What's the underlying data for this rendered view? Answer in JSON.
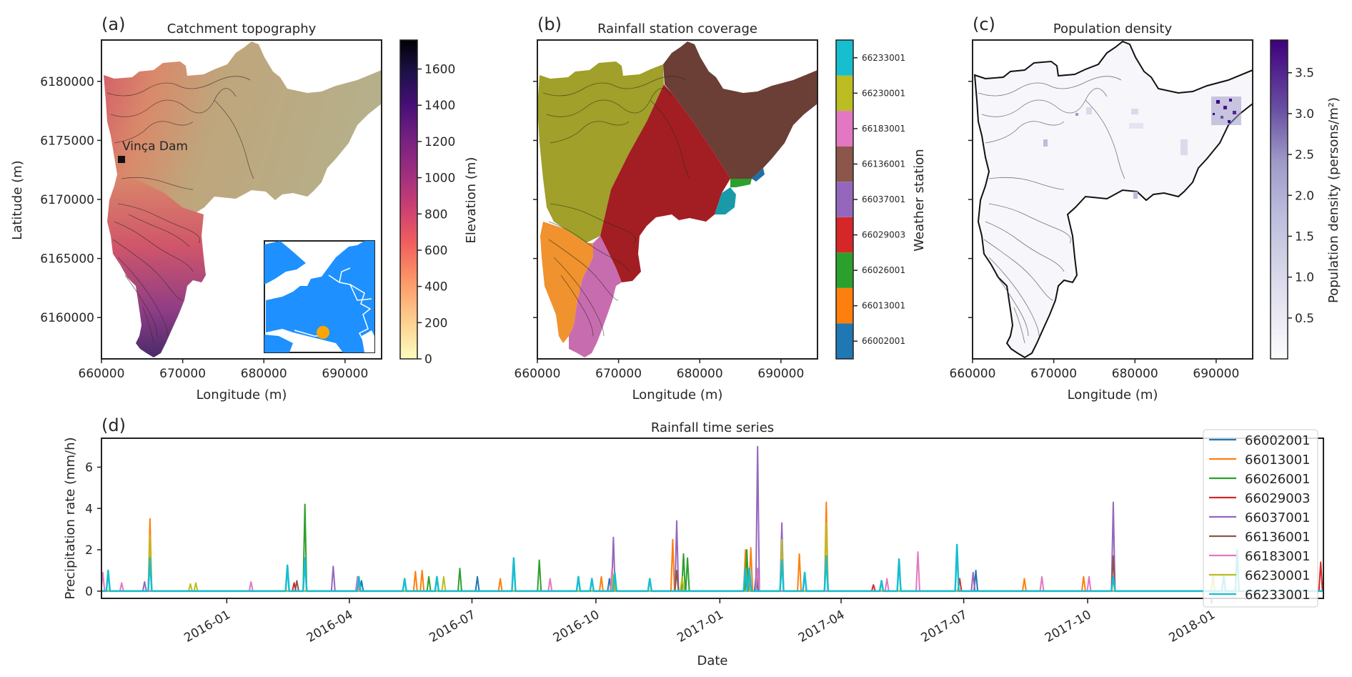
{
  "figure": {
    "panels": {
      "a": {
        "letter": "(a)",
        "title": "Catchment topography",
        "xlabel": "Longitude (m)",
        "ylabel": "Latitude (m)",
        "annotation": "Vinça Dam",
        "colorbar_label": "Elevation (m)",
        "colorbar_ticks": [
          "0",
          "200",
          "400",
          "600",
          "800",
          "1000",
          "1200",
          "1400",
          "1600"
        ]
      },
      "b": {
        "letter": "(b)",
        "title": "Rainfall station coverage",
        "xlabel": "Longitude (m)",
        "colorbar_label": "Weather station"
      },
      "c": {
        "letter": "(c)",
        "title": "Population density",
        "xlabel": "Longitude (m)",
        "colorbar_label": "Population density (persons/m²)",
        "colorbar_ticks": [
          "0.5",
          "1.0",
          "1.5",
          "2.0",
          "2.5",
          "3.0",
          "3.5"
        ]
      },
      "d": {
        "letter": "(d)",
        "title": "Rainfall time series",
        "xlabel": "Date",
        "ylabel": "Precipitation rate (mm/h)"
      }
    },
    "x_ticks": [
      "660000",
      "670000",
      "680000",
      "690000"
    ],
    "y_ticks": [
      "6180000",
      "6175000",
      "6170000",
      "6165000",
      "6160000"
    ]
  },
  "chart_data": [
    {
      "type": "heatmap",
      "title": "Catchment topography",
      "xlabel": "Longitude (m)",
      "ylabel": "Latitude (m)",
      "xlim": [
        660000,
        694500
      ],
      "ylim": [
        6156500,
        6183500
      ],
      "x_ticks": [
        660000,
        670000,
        680000,
        690000
      ],
      "y_ticks": [
        6160000,
        6165000,
        6170000,
        6175000,
        6180000
      ],
      "colorbar": {
        "label": "Elevation (m)",
        "range": [
          0,
          1760
        ],
        "ticks": [
          0,
          200,
          400,
          600,
          800,
          1000,
          1200,
          1400,
          1600
        ],
        "colormap": "magma_r"
      },
      "annotations": [
        {
          "text": "Vinça Dam",
          "x": 662500,
          "y": 6173300,
          "marker": "square"
        }
      ],
      "inset": {
        "description": "Map of France with catchment location",
        "marker_color": "#ffa500",
        "land_color": "#1e90ff"
      }
    },
    {
      "type": "heatmap",
      "title": "Rainfall station coverage",
      "xlabel": "Longitude (m)",
      "xlim": [
        660000,
        694500
      ],
      "ylim": [
        6156500,
        6183500
      ],
      "colorbar": {
        "label": "Weather station",
        "categories": [
          "66002001",
          "66013001",
          "66026001",
          "66029003",
          "66037001",
          "66136001",
          "66183001",
          "66230001",
          "66233001"
        ],
        "colors": [
          "#1f77b4",
          "#ff7f0e",
          "#2ca02c",
          "#d62728",
          "#9467bd",
          "#8c564b",
          "#e377c2",
          "#bcbd22",
          "#17becf"
        ]
      }
    },
    {
      "type": "heatmap",
      "title": "Population density",
      "xlabel": "Longitude (m)",
      "xlim": [
        660000,
        694500
      ],
      "ylim": [
        6156500,
        6183500
      ],
      "colorbar": {
        "label": "Population density (persons/m²)",
        "range": [
          0,
          3.9
        ],
        "ticks": [
          0.5,
          1.0,
          1.5,
          2.0,
          2.5,
          3.0,
          3.5
        ],
        "colormap": "Purples"
      }
    },
    {
      "type": "line",
      "title": "Rainfall time series",
      "xlabel": "Date",
      "ylabel": "Precipitation rate (mm/h)",
      "xlim": [
        "2015-09-30",
        "2018-03-25"
      ],
      "ylim": [
        -0.35,
        7.4
      ],
      "y_ticks": [
        0,
        2,
        4,
        6
      ],
      "x_ticks": [
        "2016-01",
        "2016-04",
        "2016-07",
        "2016-10",
        "2017-01",
        "2017-04",
        "2017-07",
        "2017-10",
        "2018-01"
      ],
      "legend": "top-right",
      "series": [
        {
          "name": "66002001",
          "color": "#1f77b4",
          "peaks": [
            [
              "2016-04-10",
              0.5
            ],
            [
              "2016-07-05",
              0.7
            ],
            [
              "2016-10-11",
              0.6
            ],
            [
              "2017-01-28",
              0.8
            ],
            [
              "2017-07-10",
              1.0
            ]
          ]
        },
        {
          "name": "66013001",
          "color": "#ff7f0e",
          "peaks": [
            [
              "2015-11-05",
              3.5
            ],
            [
              "2016-05-20",
              0.95
            ],
            [
              "2016-05-25",
              1.0
            ],
            [
              "2016-07-22",
              0.6
            ],
            [
              "2016-10-05",
              0.7
            ],
            [
              "2016-11-27",
              2.5
            ],
            [
              "2017-01-20",
              2.0
            ],
            [
              "2017-01-24",
              2.1
            ],
            [
              "2017-03-21",
              4.3
            ],
            [
              "2017-03-01",
              1.8
            ],
            [
              "2017-08-15",
              0.6
            ],
            [
              "2017-09-28",
              0.7
            ]
          ]
        },
        {
          "name": "66026001",
          "color": "#2ca02c",
          "peaks": [
            [
              "2016-02-28",
              4.2
            ],
            [
              "2016-06-22",
              1.1
            ],
            [
              "2016-08-20",
              1.5
            ],
            [
              "2016-12-05",
              1.8
            ],
            [
              "2016-12-08",
              1.6
            ],
            [
              "2017-01-21",
              2.0
            ],
            [
              "2016-05-30",
              0.7
            ]
          ]
        },
        {
          "name": "66029003",
          "color": "#d62728",
          "peaks": [
            [
              "2016-02-20",
              0.4
            ],
            [
              "2017-04-25",
              0.3
            ],
            [
              "2017-06-28",
              0.6
            ],
            [
              "2018-03-23",
              1.4
            ]
          ]
        },
        {
          "name": "66037001",
          "color": "#9467bd",
          "peaks": [
            [
              "2015-11-01",
              0.45
            ],
            [
              "2016-03-20",
              1.2
            ],
            [
              "2016-10-14",
              2.6
            ],
            [
              "2016-11-30",
              3.4
            ],
            [
              "2017-01-29",
              7.0
            ],
            [
              "2017-02-16",
              3.3
            ],
            [
              "2017-07-08",
              0.9
            ],
            [
              "2017-10-20",
              4.3
            ]
          ]
        },
        {
          "name": "66136001",
          "color": "#8c564b",
          "peaks": [
            [
              "2016-02-22",
              0.5
            ],
            [
              "2016-11-30",
              1.0
            ],
            [
              "2017-01-29",
              0.8
            ],
            [
              "2017-10-20",
              1.7
            ]
          ]
        },
        {
          "name": "66183001",
          "color": "#e377c2",
          "peaks": [
            [
              "2015-10-01",
              0.9
            ],
            [
              "2015-10-15",
              0.4
            ],
            [
              "2016-01-19",
              0.45
            ],
            [
              "2016-04-07",
              0.7
            ],
            [
              "2016-08-28",
              0.6
            ],
            [
              "2016-10-13",
              1.1
            ],
            [
              "2017-01-29",
              1.1
            ],
            [
              "2017-05-05",
              0.6
            ],
            [
              "2017-05-28",
              1.9
            ],
            [
              "2017-08-28",
              0.7
            ],
            [
              "2017-10-02",
              0.7
            ]
          ]
        },
        {
          "name": "66230001",
          "color": "#bcbd22",
          "peaks": [
            [
              "2015-11-05",
              2.7
            ],
            [
              "2015-12-05",
              0.35
            ],
            [
              "2015-12-09",
              0.4
            ],
            [
              "2016-06-10",
              0.7
            ],
            [
              "2016-10-14",
              0.8
            ],
            [
              "2016-12-04",
              0.7
            ],
            [
              "2017-02-16",
              2.5
            ],
            [
              "2017-03-21",
              3.3
            ],
            [
              "2018-01-02",
              0.8
            ]
          ]
        },
        {
          "name": "66233001",
          "color": "#17becf",
          "peaks": [
            [
              "2015-10-05",
              1.0
            ],
            [
              "2015-11-05",
              1.6
            ],
            [
              "2016-02-15",
              1.25
            ],
            [
              "2016-02-28",
              1.6
            ],
            [
              "2016-04-08",
              0.7
            ],
            [
              "2016-05-12",
              0.6
            ],
            [
              "2016-06-05",
              0.7
            ],
            [
              "2016-08-01",
              1.6
            ],
            [
              "2016-09-18",
              0.7
            ],
            [
              "2016-09-28",
              0.6
            ],
            [
              "2016-10-15",
              0.9
            ],
            [
              "2016-11-10",
              0.6
            ],
            [
              "2017-01-20",
              1.1
            ],
            [
              "2017-01-23",
              1.1
            ],
            [
              "2017-02-16",
              1.5
            ],
            [
              "2017-03-05",
              0.9
            ],
            [
              "2017-03-21",
              1.7
            ],
            [
              "2017-05-01",
              0.5
            ],
            [
              "2017-05-14",
              1.55
            ],
            [
              "2017-06-26",
              2.25
            ],
            [
              "2017-10-20",
              0.7
            ],
            [
              "2018-01-10",
              0.8
            ],
            [
              "2018-01-20",
              2.0
            ]
          ]
        }
      ]
    }
  ]
}
